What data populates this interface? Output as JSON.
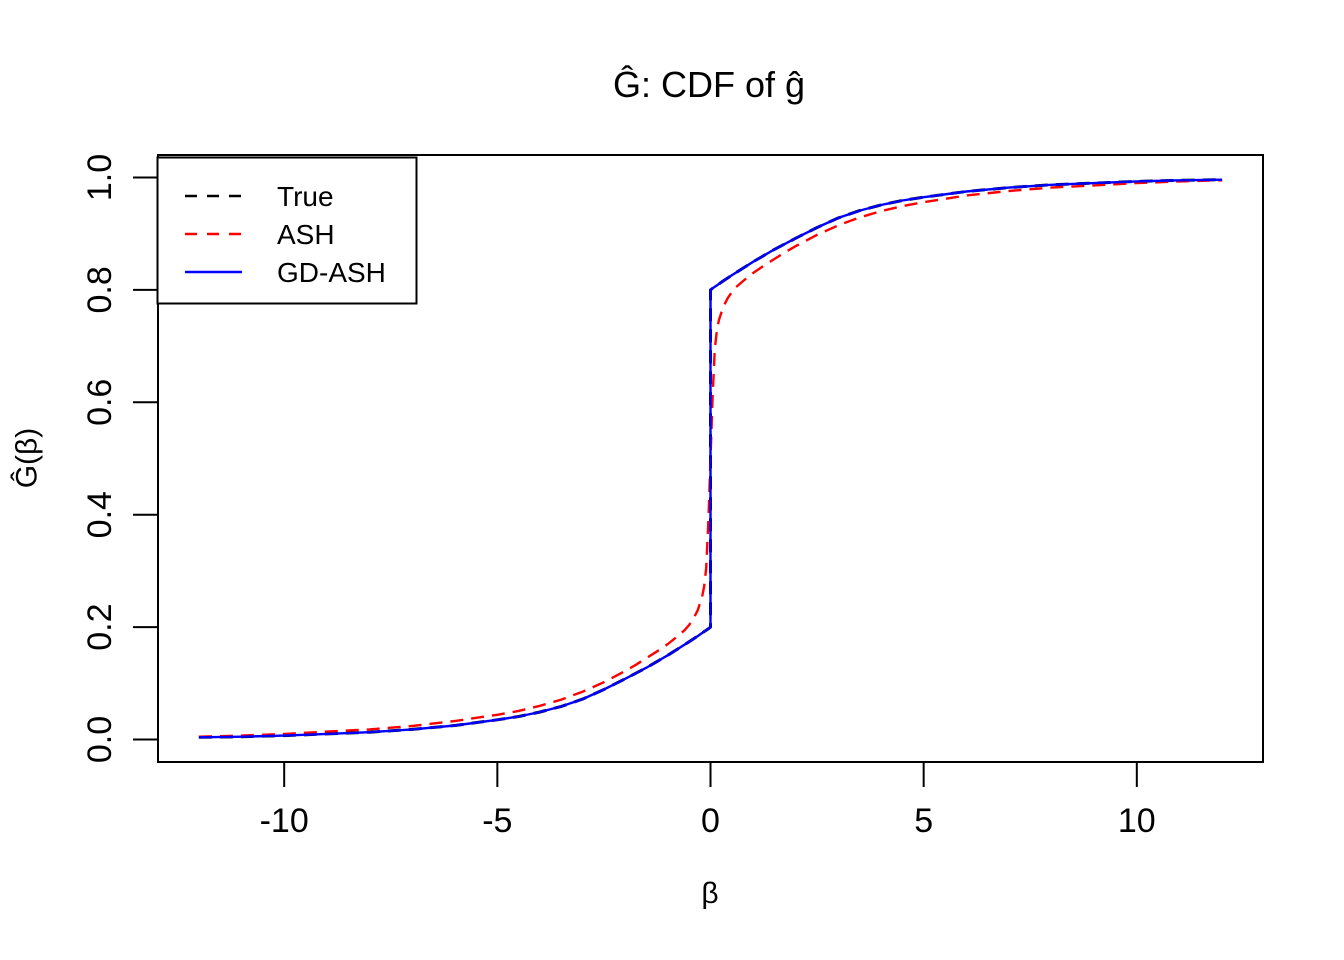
{
  "title": "Ĝ: CDF of ĝ",
  "xlabel": "β",
  "ylabel": "Ĝ(β)",
  "colors": {
    "background": "#FFFFFF",
    "axis": "#000000",
    "true_line": "#000000",
    "ash_line": "#FF0000",
    "gdash_line": "#0000FF"
  },
  "legend": {
    "position": "topleft",
    "items": [
      {
        "label": "True",
        "color": "#000000",
        "style": "dashed"
      },
      {
        "label": "ASH",
        "color": "#FF0000",
        "style": "dashed"
      },
      {
        "label": "GD-ASH",
        "color": "#0000FF",
        "style": "solid"
      }
    ]
  },
  "chart_data": {
    "type": "line",
    "title": "Ĝ: CDF of ĝ",
    "xlabel": "β",
    "ylabel": "Ĝ(β)",
    "xlim": [
      -12.96,
      12.96
    ],
    "ylim": [
      -0.04,
      1.04
    ],
    "x_ticks": [
      -10,
      -5,
      0,
      5,
      10
    ],
    "x_tick_labels": [
      "-10",
      "-5",
      "0",
      "5",
      "10"
    ],
    "y_ticks": [
      0.0,
      0.2,
      0.4,
      0.6,
      0.8,
      1.0
    ],
    "y_tick_labels": [
      "0.0",
      "0.2",
      "0.4",
      "0.6",
      "0.8",
      "1.0"
    ],
    "grid": false,
    "legend_position": "topleft",
    "description": "CDF curves with a point mass at beta=0 jumping from 0.2 to 0.8; True and GD-ASH coincide, ASH smooths the jump.",
    "series": [
      {
        "name": "True",
        "color": "#000000",
        "style": "dashed",
        "points": [
          [
            -12,
            0.004
          ],
          [
            -11,
            0.005
          ],
          [
            -10,
            0.007
          ],
          [
            -9,
            0.01
          ],
          [
            -8,
            0.013
          ],
          [
            -7,
            0.018
          ],
          [
            -6,
            0.025
          ],
          [
            -5,
            0.035
          ],
          [
            -4.5,
            0.041
          ],
          [
            -4,
            0.049
          ],
          [
            -3.5,
            0.059
          ],
          [
            -3,
            0.072
          ],
          [
            -2.5,
            0.089
          ],
          [
            -2,
            0.108
          ],
          [
            -1.75,
            0.118
          ],
          [
            -1.5,
            0.128
          ],
          [
            -1.25,
            0.139
          ],
          [
            -1,
            0.15
          ],
          [
            -0.75,
            0.162
          ],
          [
            -0.5,
            0.174
          ],
          [
            -0.3,
            0.184
          ],
          [
            -0.15,
            0.192
          ],
          [
            -0.05,
            0.197
          ],
          [
            0,
            0.2
          ],
          [
            0,
            0.8
          ],
          [
            0.05,
            0.803
          ],
          [
            0.15,
            0.808
          ],
          [
            0.3,
            0.816
          ],
          [
            0.5,
            0.826
          ],
          [
            0.75,
            0.838
          ],
          [
            1,
            0.85
          ],
          [
            1.25,
            0.861
          ],
          [
            1.5,
            0.872
          ],
          [
            1.75,
            0.882
          ],
          [
            2,
            0.892
          ],
          [
            2.5,
            0.911
          ],
          [
            3,
            0.928
          ],
          [
            3.5,
            0.941
          ],
          [
            4,
            0.951
          ],
          [
            4.5,
            0.959
          ],
          [
            5,
            0.965
          ],
          [
            6,
            0.975
          ],
          [
            7,
            0.982
          ],
          [
            8,
            0.987
          ],
          [
            9,
            0.99
          ],
          [
            10,
            0.993
          ],
          [
            11,
            0.995
          ],
          [
            12,
            0.996
          ]
        ]
      },
      {
        "name": "ASH",
        "color": "#FF0000",
        "style": "dashed",
        "points": [
          [
            -12,
            0.005
          ],
          [
            -11,
            0.007
          ],
          [
            -10,
            0.01
          ],
          [
            -9,
            0.014
          ],
          [
            -8,
            0.018
          ],
          [
            -7,
            0.024
          ],
          [
            -6,
            0.033
          ],
          [
            -5,
            0.044
          ],
          [
            -4.5,
            0.051
          ],
          [
            -4,
            0.06
          ],
          [
            -3.5,
            0.071
          ],
          [
            -3,
            0.085
          ],
          [
            -2.5,
            0.102
          ],
          [
            -2,
            0.122
          ],
          [
            -1.75,
            0.133
          ],
          [
            -1.5,
            0.145
          ],
          [
            -1.25,
            0.157
          ],
          [
            -1,
            0.17
          ],
          [
            -0.75,
            0.185
          ],
          [
            -0.6,
            0.195
          ],
          [
            -0.5,
            0.204
          ],
          [
            -0.4,
            0.215
          ],
          [
            -0.3,
            0.23
          ],
          [
            -0.2,
            0.253
          ],
          [
            -0.15,
            0.272
          ],
          [
            -0.1,
            0.305
          ],
          [
            -0.05,
            0.39
          ],
          [
            0,
            0.5
          ],
          [
            0.05,
            0.61
          ],
          [
            0.1,
            0.695
          ],
          [
            0.15,
            0.728
          ],
          [
            0.2,
            0.747
          ],
          [
            0.3,
            0.77
          ],
          [
            0.4,
            0.785
          ],
          [
            0.5,
            0.796
          ],
          [
            0.6,
            0.805
          ],
          [
            0.75,
            0.815
          ],
          [
            1,
            0.83
          ],
          [
            1.25,
            0.843
          ],
          [
            1.5,
            0.855
          ],
          [
            1.75,
            0.867
          ],
          [
            2,
            0.878
          ],
          [
            2.5,
            0.898
          ],
          [
            3,
            0.915
          ],
          [
            3.5,
            0.929
          ],
          [
            4,
            0.94
          ],
          [
            4.5,
            0.949
          ],
          [
            5,
            0.956
          ],
          [
            6,
            0.968
          ],
          [
            7,
            0.976
          ],
          [
            8,
            0.982
          ],
          [
            9,
            0.986
          ],
          [
            10,
            0.99
          ],
          [
            11,
            0.993
          ],
          [
            12,
            0.995
          ]
        ]
      },
      {
        "name": "GD-ASH",
        "color": "#0000FF",
        "style": "solid",
        "points": [
          [
            -12,
            0.004
          ],
          [
            -11,
            0.005
          ],
          [
            -10,
            0.007
          ],
          [
            -9,
            0.01
          ],
          [
            -8,
            0.013
          ],
          [
            -7,
            0.018
          ],
          [
            -6,
            0.025
          ],
          [
            -5,
            0.035
          ],
          [
            -4.5,
            0.041
          ],
          [
            -4,
            0.049
          ],
          [
            -3.5,
            0.059
          ],
          [
            -3,
            0.072
          ],
          [
            -2.5,
            0.089
          ],
          [
            -2,
            0.108
          ],
          [
            -1.75,
            0.118
          ],
          [
            -1.5,
            0.128
          ],
          [
            -1.25,
            0.139
          ],
          [
            -1,
            0.15
          ],
          [
            -0.75,
            0.162
          ],
          [
            -0.5,
            0.174
          ],
          [
            -0.3,
            0.184
          ],
          [
            -0.15,
            0.192
          ],
          [
            -0.05,
            0.197
          ],
          [
            0,
            0.2
          ],
          [
            0,
            0.8
          ],
          [
            0.05,
            0.803
          ],
          [
            0.15,
            0.808
          ],
          [
            0.3,
            0.816
          ],
          [
            0.5,
            0.826
          ],
          [
            0.75,
            0.838
          ],
          [
            1,
            0.85
          ],
          [
            1.25,
            0.861
          ],
          [
            1.5,
            0.872
          ],
          [
            1.75,
            0.882
          ],
          [
            2,
            0.892
          ],
          [
            2.5,
            0.911
          ],
          [
            3,
            0.928
          ],
          [
            3.5,
            0.941
          ],
          [
            4,
            0.951
          ],
          [
            4.5,
            0.959
          ],
          [
            5,
            0.965
          ],
          [
            6,
            0.975
          ],
          [
            7,
            0.982
          ],
          [
            8,
            0.987
          ],
          [
            9,
            0.99
          ],
          [
            10,
            0.993
          ],
          [
            11,
            0.995
          ],
          [
            12,
            0.996
          ]
        ]
      }
    ]
  }
}
